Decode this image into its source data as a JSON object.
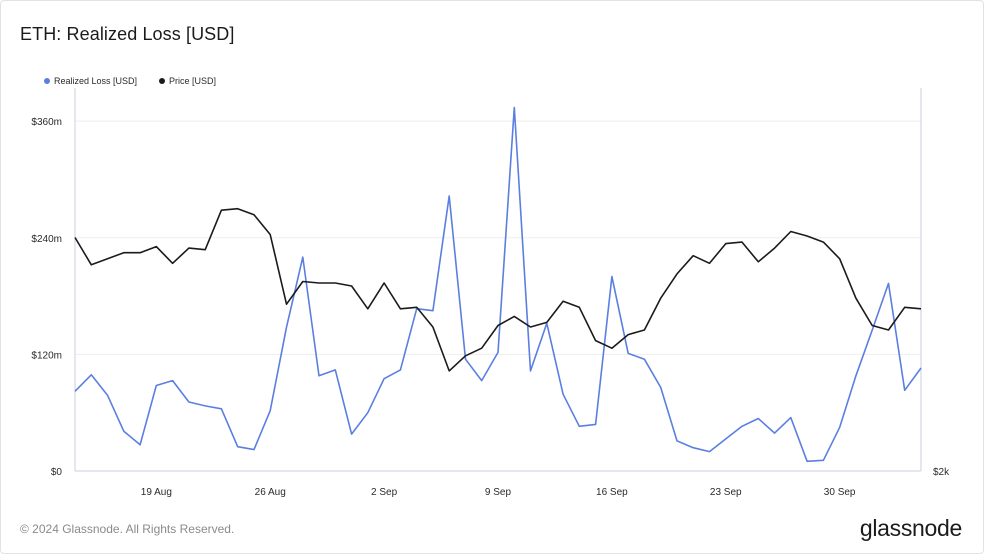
{
  "title": "ETH: Realized Loss [USD]",
  "footer": "© 2024 Glassnode. All Rights Reserved.",
  "logo_text": "glassnode",
  "colors": {
    "realized_loss": "#5b7fe0",
    "price": "#1b1b1b",
    "grid": "#eeeeee",
    "axis": "#c8d0dc"
  },
  "chart_data": {
    "type": "line",
    "title": "ETH: Realized Loss [USD]",
    "x_tick_labels": [
      "19 Aug",
      "26 Aug",
      "2 Sep",
      "9 Sep",
      "16 Sep",
      "23 Sep",
      "30 Sep"
    ],
    "x_tick_days": [
      5,
      12,
      19,
      26,
      33,
      40,
      47
    ],
    "y_left": {
      "ticks": [
        0,
        120,
        240,
        360
      ],
      "tick_labels": [
        "$0",
        "$120m",
        "$240m",
        "$360m"
      ],
      "range": [
        0,
        390
      ],
      "unit": "USD millions"
    },
    "y_right": {
      "tick_labels": [
        "$2k"
      ]
    },
    "grid": true,
    "legend_position": "top-left",
    "series": [
      {
        "name": "Realized Loss [USD]",
        "axis": "left",
        "x": [
          0,
          1,
          2,
          3,
          4,
          5,
          6,
          7,
          8,
          9,
          10,
          11,
          12,
          13,
          14,
          15,
          16,
          17,
          18,
          19,
          20,
          21,
          22,
          23,
          24,
          25,
          26,
          27,
          28,
          29,
          30,
          31,
          32,
          33,
          34,
          35,
          36,
          37,
          38,
          39,
          40,
          41,
          42,
          43,
          44,
          45,
          46,
          47,
          48,
          49,
          50,
          51,
          52
        ],
        "values": [
          82,
          99,
          78,
          41,
          27,
          88,
          93,
          71,
          67,
          64,
          25,
          22,
          62,
          148,
          220,
          98,
          104,
          38,
          60,
          95,
          104,
          167,
          165,
          283,
          115,
          93,
          122,
          374,
          103,
          152,
          79,
          46,
          48,
          200,
          121,
          115,
          86,
          31,
          24,
          20,
          33,
          46,
          54,
          39,
          55,
          10,
          11,
          45,
          98,
          145,
          193,
          83,
          106
        ]
      },
      {
        "name": "Price [USD]",
        "axis": "right",
        "x": [
          0,
          1,
          2,
          3,
          4,
          5,
          6,
          7,
          8,
          9,
          10,
          11,
          12,
          13,
          14,
          15,
          16,
          17,
          18,
          19,
          20,
          21,
          22,
          23,
          24,
          25,
          26,
          27,
          28,
          29,
          30,
          31,
          32,
          33,
          34,
          35,
          36,
          37,
          38,
          39,
          40,
          41,
          42,
          43,
          44,
          45,
          46,
          47,
          48,
          49,
          50,
          51,
          52
        ],
        "values": [
          2700,
          2610,
          2630,
          2650,
          2650,
          2670,
          2615,
          2665,
          2660,
          2790,
          2795,
          2775,
          2710,
          2480,
          2555,
          2550,
          2550,
          2540,
          2465,
          2550,
          2465,
          2470,
          2405,
          2260,
          2310,
          2335,
          2410,
          2440,
          2405,
          2420,
          2490,
          2470,
          2360,
          2335,
          2380,
          2395,
          2500,
          2580,
          2640,
          2615,
          2680,
          2685,
          2620,
          2665,
          2720,
          2705,
          2685,
          2630,
          2500,
          2410,
          2395,
          2470,
          2465
        ]
      }
    ]
  }
}
